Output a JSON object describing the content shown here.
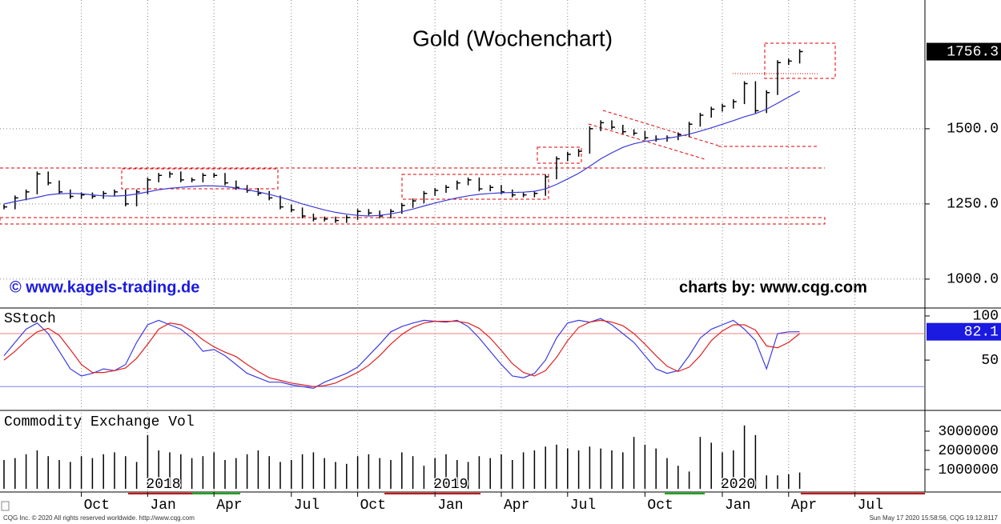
{
  "chart_data": [
    {
      "type": "ohlc",
      "title": "Gold (Wochenchart)",
      "annotations": [
        "© www.kagels-trading.de",
        "charts by: www.cqg.com"
      ],
      "categories": [
        null,
        null,
        null,
        null,
        null,
        null,
        null,
        "Oct",
        null,
        null,
        null,
        null,
        null,
        "Jan",
        null,
        null,
        null,
        null,
        null,
        "Apr",
        null,
        null,
        null,
        null,
        null,
        null,
        "Jul",
        null,
        null,
        null,
        null,
        null,
        "Oct",
        null,
        null,
        null,
        null,
        null,
        null,
        "Jan",
        null,
        null,
        null,
        null,
        null,
        "Apr",
        null,
        null,
        null,
        null,
        null,
        "Jul",
        null,
        null,
        null,
        null,
        null,
        null,
        "Oct",
        null,
        null,
        null,
        null,
        null,
        null,
        "Jan",
        null,
        null,
        null,
        null,
        null,
        "Apr",
        null,
        null,
        null,
        null,
        null,
        "Jul"
      ],
      "ylim": [
        904,
        1928
      ],
      "yticks": [
        {
          "value": 1000,
          "label": "1000.0"
        },
        {
          "value": 1250,
          "label": "1250.0"
        },
        {
          "value": 1500,
          "label": "1500.0"
        }
      ],
      "grid": true,
      "series": [
        {
          "name": "Gold",
          "color": "#000000",
          "values": [
            1240,
            1270,
            1290,
            1350,
            1320,
            1290,
            1275,
            1280,
            1275,
            1285,
            1290,
            1250,
            1290,
            1330,
            1345,
            1350,
            1330,
            1330,
            1345,
            1345,
            1320,
            1305,
            1295,
            1285,
            1270,
            1240,
            1230,
            1210,
            1200,
            1200,
            1195,
            1205,
            1225,
            1220,
            1210,
            1225,
            1245,
            1260,
            1285,
            1295,
            1305,
            1320,
            1330,
            1300,
            1305,
            1290,
            1280,
            1280,
            1285,
            1340,
            1400,
            1415,
            1425,
            1500,
            1520,
            1505,
            1490,
            1485,
            1470,
            1465,
            1470,
            1480,
            1515,
            1545,
            1565,
            1575,
            1590,
            1650,
            1560,
            1620,
            1720,
            1725,
            1756.3,
            null,
            null,
            null,
            null,
            null
          ]
        },
        {
          "type": "line",
          "color": "#3a3ad8",
          "values": [
            1250,
            1258,
            1265,
            1272,
            1280,
            1284,
            1285,
            1284,
            1280,
            1277,
            1276,
            1278,
            1283,
            1290,
            1297,
            1302,
            1305,
            1308,
            1310,
            1310,
            1308,
            1303,
            1297,
            1290,
            1282,
            1272,
            1262,
            1250,
            1240,
            1230,
            1222,
            1216,
            1212,
            1210,
            1212,
            1217,
            1224,
            1233,
            1243,
            1253,
            1262,
            1270,
            1277,
            1282,
            1285,
            1287,
            1288,
            1289,
            1292,
            1300,
            1315,
            1333,
            1352,
            1375,
            1400,
            1420,
            1438,
            1450,
            1458,
            1463,
            1468,
            1474,
            1482,
            1492,
            1503,
            1515,
            1527,
            1540,
            1550,
            1565,
            1585,
            1605,
            1625,
            null,
            null,
            null,
            null,
            null
          ]
        }
      ]
    },
    {
      "type": "line",
      "title": "SStoch",
      "ylim": [
        -7,
        109
      ],
      "yticks": [
        50,
        100
      ],
      "levels": [
        80,
        20
      ],
      "level_colors": [
        "#f08080",
        "#8080f0"
      ],
      "series": [
        {
          "color": "#3c3ce0",
          "values": [
            55,
            70,
            85,
            92,
            80,
            60,
            40,
            32,
            35,
            40,
            38,
            45,
            70,
            90,
            95,
            90,
            85,
            75,
            60,
            62,
            55,
            45,
            35,
            30,
            25,
            25,
            22,
            20,
            18,
            25,
            30,
            35,
            42,
            55,
            68,
            82,
            88,
            92,
            95,
            94,
            93,
            95,
            88,
            75,
            60,
            45,
            32,
            30,
            35,
            50,
            75,
            92,
            95,
            93,
            97,
            90,
            80,
            70,
            55,
            40,
            35,
            38,
            55,
            75,
            85,
            90,
            95,
            85,
            72,
            40,
            80,
            82,
            82.1,
            null,
            null,
            null,
            null,
            null
          ]
        },
        {
          "color": "#e02020",
          "values": [
            50,
            60,
            72,
            82,
            86,
            78,
            62,
            45,
            36,
            36,
            38,
            41,
            52,
            68,
            85,
            92,
            90,
            83,
            73,
            65,
            59,
            54,
            45,
            37,
            30,
            27,
            24,
            22,
            20,
            21,
            24,
            30,
            36,
            44,
            55,
            68,
            79,
            87,
            92,
            94,
            94,
            94,
            92,
            86,
            75,
            61,
            46,
            36,
            32,
            38,
            53,
            72,
            87,
            93,
            95,
            93,
            89,
            80,
            68,
            55,
            43,
            37,
            42,
            55,
            72,
            83,
            90,
            90,
            84,
            66,
            64,
            70,
            80,
            null,
            null,
            null,
            null,
            null
          ]
        }
      ]
    },
    {
      "type": "bar",
      "title": "Commodity Exchange Vol",
      "ylim": [
        0,
        4000000
      ],
      "yticks": [
        1000000,
        2000000,
        3000000
      ],
      "color": "#000000",
      "years": [
        null,
        null,
        null,
        null,
        null,
        null,
        null,
        null,
        null,
        null,
        null,
        null,
        null,
        "2018",
        null,
        null,
        null,
        null,
        null,
        null,
        null,
        null,
        null,
        null,
        null,
        null,
        null,
        null,
        null,
        null,
        null,
        null,
        null,
        null,
        null,
        null,
        null,
        null,
        null,
        "2019",
        null,
        null,
        null,
        null,
        null,
        null,
        null,
        null,
        null,
        null,
        null,
        null,
        null,
        null,
        null,
        null,
        null,
        null,
        null,
        null,
        null,
        null,
        null,
        null,
        null,
        "2020",
        null,
        null,
        null,
        null,
        null,
        null,
        null,
        null,
        null,
        null,
        null,
        null
      ],
      "values": [
        1500000,
        1600000,
        1800000,
        2000000,
        1700000,
        1500000,
        1400000,
        1700000,
        1600000,
        1800000,
        1900000,
        1700000,
        1400000,
        2800000,
        2000000,
        1900000,
        1800000,
        1600000,
        1700000,
        1900000,
        1500000,
        1600000,
        1800000,
        2000000,
        1700000,
        1400000,
        1500000,
        1800000,
        1900000,
        1600000,
        1400000,
        1300000,
        1700000,
        1800000,
        1600000,
        1500000,
        1900000,
        1700000,
        1200000,
        1600000,
        1800000,
        1500000,
        1400000,
        1700000,
        1600000,
        1800000,
        1500000,
        1900000,
        2000000,
        2200000,
        2300000,
        2100000,
        2000000,
        2200000,
        2100000,
        2000000,
        1900000,
        2700000,
        2300000,
        2100000,
        1600000,
        1200000,
        900000,
        2700000,
        2400000,
        1900000,
        2000000,
        3300000,
        2800000,
        700000,
        700000,
        750000,
        850000,
        null,
        null,
        null,
        null,
        null
      ]
    }
  ],
  "footer": {
    "left": "CQG Inc. © 2020 All rights reserved worldwide. http://www.cqg.com",
    "right": "Sun May 17 2020 15:58:56, CQG 19.12.8117"
  }
}
